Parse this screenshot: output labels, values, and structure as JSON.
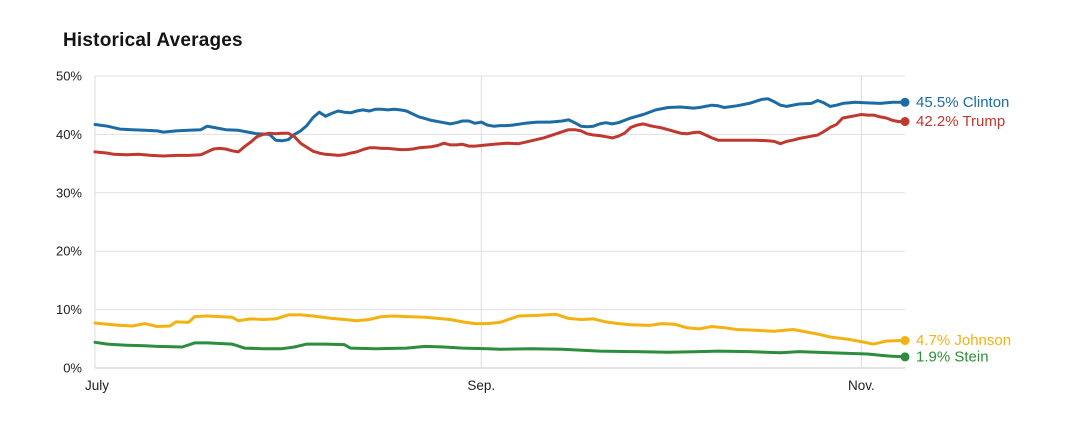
{
  "page": {
    "title": "Historical Averages"
  },
  "chart_data": {
    "type": "line",
    "title": "Historical Averages",
    "xlabel": "",
    "ylabel": "",
    "grid": true,
    "legend_position": "right-end-labels",
    "x_axis": {
      "range_days": [
        0,
        130
      ],
      "ticks": [
        {
          "label": "July",
          "day": 0
        },
        {
          "label": "Sep.",
          "day": 62
        },
        {
          "label": "Nov.",
          "day": 123
        }
      ]
    },
    "y_axis": {
      "range": [
        0,
        50
      ],
      "ticks": [
        {
          "label": "0%",
          "value": 0
        },
        {
          "label": "10%",
          "value": 10
        },
        {
          "label": "20%",
          "value": 20
        },
        {
          "label": "30%",
          "value": 30
        },
        {
          "label": "40%",
          "value": 40
        },
        {
          "label": "50%",
          "value": 50
        }
      ]
    },
    "series": [
      {
        "id": "clinton",
        "name": "Clinton",
        "color": "#1d6ba5",
        "end_label": "45.5% Clinton",
        "end_value": 45.5,
        "points": [
          [
            0,
            41.7
          ],
          [
            2,
            41.4
          ],
          [
            4,
            40.9
          ],
          [
            6,
            40.8
          ],
          [
            8,
            40.7
          ],
          [
            10,
            40.6
          ],
          [
            11,
            40.4
          ],
          [
            13,
            40.6
          ],
          [
            15,
            40.7
          ],
          [
            17,
            40.8
          ],
          [
            18,
            41.4
          ],
          [
            19,
            41.2
          ],
          [
            21,
            40.8
          ],
          [
            23,
            40.7
          ],
          [
            25,
            40.3
          ],
          [
            26,
            40.1
          ],
          [
            28,
            40.0
          ],
          [
            29,
            39.0
          ],
          [
            30,
            38.9
          ],
          [
            31,
            39.1
          ],
          [
            32,
            40.0
          ],
          [
            33,
            40.6
          ],
          [
            34,
            41.5
          ],
          [
            35,
            42.9
          ],
          [
            36,
            43.8
          ],
          [
            37,
            43.1
          ],
          [
            38,
            43.6
          ],
          [
            39,
            44.0
          ],
          [
            40,
            43.8
          ],
          [
            41,
            43.7
          ],
          [
            42,
            44.0
          ],
          [
            43,
            44.2
          ],
          [
            44,
            44.0
          ],
          [
            45,
            44.3
          ],
          [
            46,
            44.3
          ],
          [
            47,
            44.2
          ],
          [
            48,
            44.3
          ],
          [
            49,
            44.2
          ],
          [
            50,
            44.0
          ],
          [
            51,
            43.5
          ],
          [
            52,
            43.0
          ],
          [
            53,
            42.7
          ],
          [
            54,
            42.4
          ],
          [
            56,
            42.0
          ],
          [
            57,
            41.8
          ],
          [
            58,
            42.0
          ],
          [
            59,
            42.3
          ],
          [
            60,
            42.3
          ],
          [
            61,
            41.9
          ],
          [
            62,
            42.1
          ],
          [
            63,
            41.6
          ],
          [
            64,
            41.4
          ],
          [
            65,
            41.5
          ],
          [
            66,
            41.5
          ],
          [
            67,
            41.6
          ],
          [
            69,
            41.9
          ],
          [
            71,
            42.1
          ],
          [
            73,
            42.1
          ],
          [
            75,
            42.3
          ],
          [
            76,
            42.5
          ],
          [
            77,
            42.0
          ],
          [
            78,
            41.4
          ],
          [
            79,
            41.3
          ],
          [
            80,
            41.4
          ],
          [
            81,
            41.8
          ],
          [
            82,
            42.0
          ],
          [
            83,
            41.8
          ],
          [
            84,
            42.0
          ],
          [
            86,
            42.8
          ],
          [
            88,
            43.4
          ],
          [
            90,
            44.2
          ],
          [
            92,
            44.6
          ],
          [
            94,
            44.7
          ],
          [
            96,
            44.5
          ],
          [
            97,
            44.6
          ],
          [
            99,
            45.0
          ],
          [
            100,
            44.9
          ],
          [
            101,
            44.6
          ],
          [
            103,
            44.9
          ],
          [
            105,
            45.3
          ],
          [
            107,
            46.0
          ],
          [
            108,
            46.1
          ],
          [
            109,
            45.6
          ],
          [
            110,
            45.0
          ],
          [
            111,
            44.8
          ],
          [
            113,
            45.2
          ],
          [
            115,
            45.3
          ],
          [
            116,
            45.8
          ],
          [
            117,
            45.4
          ],
          [
            118,
            44.8
          ],
          [
            119,
            45.0
          ],
          [
            120,
            45.3
          ],
          [
            122,
            45.5
          ],
          [
            124,
            45.4
          ],
          [
            126,
            45.3
          ],
          [
            128,
            45.5
          ],
          [
            130,
            45.5
          ]
        ]
      },
      {
        "id": "trump",
        "name": "Trump",
        "color": "#bf392e",
        "end_label": "42.2% Trump",
        "end_value": 42.2,
        "points": [
          [
            0,
            37.0
          ],
          [
            2,
            36.8
          ],
          [
            3,
            36.6
          ],
          [
            5,
            36.5
          ],
          [
            7,
            36.6
          ],
          [
            9,
            36.4
          ],
          [
            11,
            36.3
          ],
          [
            13,
            36.4
          ],
          [
            15,
            36.4
          ],
          [
            17,
            36.5
          ],
          [
            18,
            37.0
          ],
          [
            19,
            37.5
          ],
          [
            20,
            37.6
          ],
          [
            21,
            37.5
          ],
          [
            22,
            37.2
          ],
          [
            23,
            37.0
          ],
          [
            24,
            37.9
          ],
          [
            25,
            38.7
          ],
          [
            26,
            39.6
          ],
          [
            27,
            40.0
          ],
          [
            28,
            40.2
          ],
          [
            29,
            40.1
          ],
          [
            30,
            40.2
          ],
          [
            31,
            40.2
          ],
          [
            32,
            39.6
          ],
          [
            33,
            38.5
          ],
          [
            34,
            37.8
          ],
          [
            35,
            37.1
          ],
          [
            36,
            36.8
          ],
          [
            37,
            36.6
          ],
          [
            38,
            36.5
          ],
          [
            39,
            36.4
          ],
          [
            40,
            36.5
          ],
          [
            41,
            36.8
          ],
          [
            42,
            37.0
          ],
          [
            43,
            37.4
          ],
          [
            44,
            37.7
          ],
          [
            45,
            37.7
          ],
          [
            46,
            37.6
          ],
          [
            47,
            37.6
          ],
          [
            48,
            37.5
          ],
          [
            49,
            37.4
          ],
          [
            50,
            37.4
          ],
          [
            51,
            37.5
          ],
          [
            52,
            37.7
          ],
          [
            53,
            37.8
          ],
          [
            54,
            37.9
          ],
          [
            55,
            38.1
          ],
          [
            56,
            38.5
          ],
          [
            57,
            38.2
          ],
          [
            58,
            38.2
          ],
          [
            59,
            38.3
          ],
          [
            60,
            38.0
          ],
          [
            61,
            38.0
          ],
          [
            62,
            38.1
          ],
          [
            63,
            38.2
          ],
          [
            64,
            38.3
          ],
          [
            66,
            38.5
          ],
          [
            68,
            38.4
          ],
          [
            70,
            38.9
          ],
          [
            72,
            39.4
          ],
          [
            74,
            40.1
          ],
          [
            76,
            40.8
          ],
          [
            77,
            40.8
          ],
          [
            78,
            40.6
          ],
          [
            79,
            40.1
          ],
          [
            80,
            39.9
          ],
          [
            81,
            39.8
          ],
          [
            82,
            39.6
          ],
          [
            83,
            39.4
          ],
          [
            84,
            39.7
          ],
          [
            85,
            40.2
          ],
          [
            86,
            41.2
          ],
          [
            87,
            41.6
          ],
          [
            88,
            41.8
          ],
          [
            89,
            41.5
          ],
          [
            90,
            41.3
          ],
          [
            91,
            41.1
          ],
          [
            92,
            40.8
          ],
          [
            93,
            40.5
          ],
          [
            94,
            40.2
          ],
          [
            95,
            40.1
          ],
          [
            96,
            40.3
          ],
          [
            97,
            40.4
          ],
          [
            98,
            39.9
          ],
          [
            99,
            39.4
          ],
          [
            100,
            39.0
          ],
          [
            102,
            39.0
          ],
          [
            104,
            39.0
          ],
          [
            106,
            39.0
          ],
          [
            108,
            38.9
          ],
          [
            109,
            38.8
          ],
          [
            110,
            38.4
          ],
          [
            111,
            38.8
          ],
          [
            112,
            39.0
          ],
          [
            113,
            39.3
          ],
          [
            115,
            39.7
          ],
          [
            116,
            39.9
          ],
          [
            117,
            40.5
          ],
          [
            118,
            41.2
          ],
          [
            119,
            41.7
          ],
          [
            120,
            42.8
          ],
          [
            121,
            43.0
          ],
          [
            122,
            43.2
          ],
          [
            123,
            43.4
          ],
          [
            124,
            43.3
          ],
          [
            125,
            43.3
          ],
          [
            126,
            43.0
          ],
          [
            127,
            42.8
          ],
          [
            128,
            42.4
          ],
          [
            129,
            42.2
          ],
          [
            130,
            42.2
          ]
        ]
      },
      {
        "id": "johnson",
        "name": "Johnson",
        "color": "#f2b212",
        "end_label": "4.7% Johnson",
        "end_value": 4.7,
        "points": [
          [
            0,
            7.7
          ],
          [
            2,
            7.5
          ],
          [
            4,
            7.3
          ],
          [
            6,
            7.2
          ],
          [
            8,
            7.6
          ],
          [
            10,
            7.1
          ],
          [
            12,
            7.2
          ],
          [
            13,
            7.9
          ],
          [
            15,
            7.8
          ],
          [
            16,
            8.8
          ],
          [
            18,
            8.9
          ],
          [
            20,
            8.8
          ],
          [
            22,
            8.7
          ],
          [
            23,
            8.1
          ],
          [
            25,
            8.4
          ],
          [
            27,
            8.3
          ],
          [
            29,
            8.4
          ],
          [
            31,
            9.1
          ],
          [
            33,
            9.1
          ],
          [
            35,
            8.9
          ],
          [
            38,
            8.5
          ],
          [
            40,
            8.3
          ],
          [
            42,
            8.1
          ],
          [
            44,
            8.3
          ],
          [
            46,
            8.8
          ],
          [
            48,
            8.9
          ],
          [
            50,
            8.8
          ],
          [
            53,
            8.7
          ],
          [
            55,
            8.5
          ],
          [
            57,
            8.3
          ],
          [
            59,
            7.9
          ],
          [
            61,
            7.6
          ],
          [
            63,
            7.6
          ],
          [
            65,
            7.8
          ],
          [
            68,
            8.9
          ],
          [
            71,
            9.0
          ],
          [
            74,
            9.2
          ],
          [
            76,
            8.5
          ],
          [
            78,
            8.3
          ],
          [
            80,
            8.4
          ],
          [
            82,
            7.9
          ],
          [
            84,
            7.6
          ],
          [
            86,
            7.4
          ],
          [
            89,
            7.3
          ],
          [
            91,
            7.6
          ],
          [
            93,
            7.5
          ],
          [
            95,
            6.9
          ],
          [
            97,
            6.7
          ],
          [
            99,
            7.1
          ],
          [
            101,
            6.9
          ],
          [
            103,
            6.6
          ],
          [
            105,
            6.5
          ],
          [
            107,
            6.4
          ],
          [
            109,
            6.3
          ],
          [
            112,
            6.6
          ],
          [
            113,
            6.4
          ],
          [
            116,
            5.8
          ],
          [
            118,
            5.3
          ],
          [
            121,
            4.9
          ],
          [
            123,
            4.5
          ],
          [
            125,
            4.1
          ],
          [
            127,
            4.6
          ],
          [
            129,
            4.7
          ],
          [
            130,
            4.7
          ]
        ]
      },
      {
        "id": "stein",
        "name": "Stein",
        "color": "#2b8d3d",
        "end_label": "1.9% Stein",
        "end_value": 1.9,
        "points": [
          [
            0,
            4.4
          ],
          [
            2,
            4.1
          ],
          [
            5,
            3.9
          ],
          [
            8,
            3.8
          ],
          [
            10,
            3.7
          ],
          [
            14,
            3.6
          ],
          [
            16,
            4.3
          ],
          [
            18,
            4.3
          ],
          [
            22,
            4.1
          ],
          [
            24,
            3.4
          ],
          [
            27,
            3.3
          ],
          [
            30,
            3.3
          ],
          [
            32,
            3.6
          ],
          [
            34,
            4.1
          ],
          [
            37,
            4.1
          ],
          [
            40,
            4.0
          ],
          [
            41,
            3.4
          ],
          [
            45,
            3.3
          ],
          [
            50,
            3.4
          ],
          [
            53,
            3.7
          ],
          [
            56,
            3.6
          ],
          [
            59,
            3.4
          ],
          [
            63,
            3.3
          ],
          [
            65,
            3.2
          ],
          [
            70,
            3.3
          ],
          [
            75,
            3.2
          ],
          [
            81,
            2.9
          ],
          [
            86,
            2.8
          ],
          [
            92,
            2.7
          ],
          [
            97,
            2.8
          ],
          [
            100,
            2.9
          ],
          [
            105,
            2.8
          ],
          [
            110,
            2.6
          ],
          [
            113,
            2.8
          ],
          [
            118,
            2.6
          ],
          [
            124,
            2.4
          ],
          [
            126,
            2.2
          ],
          [
            128,
            2.0
          ],
          [
            130,
            1.9
          ]
        ]
      }
    ]
  }
}
